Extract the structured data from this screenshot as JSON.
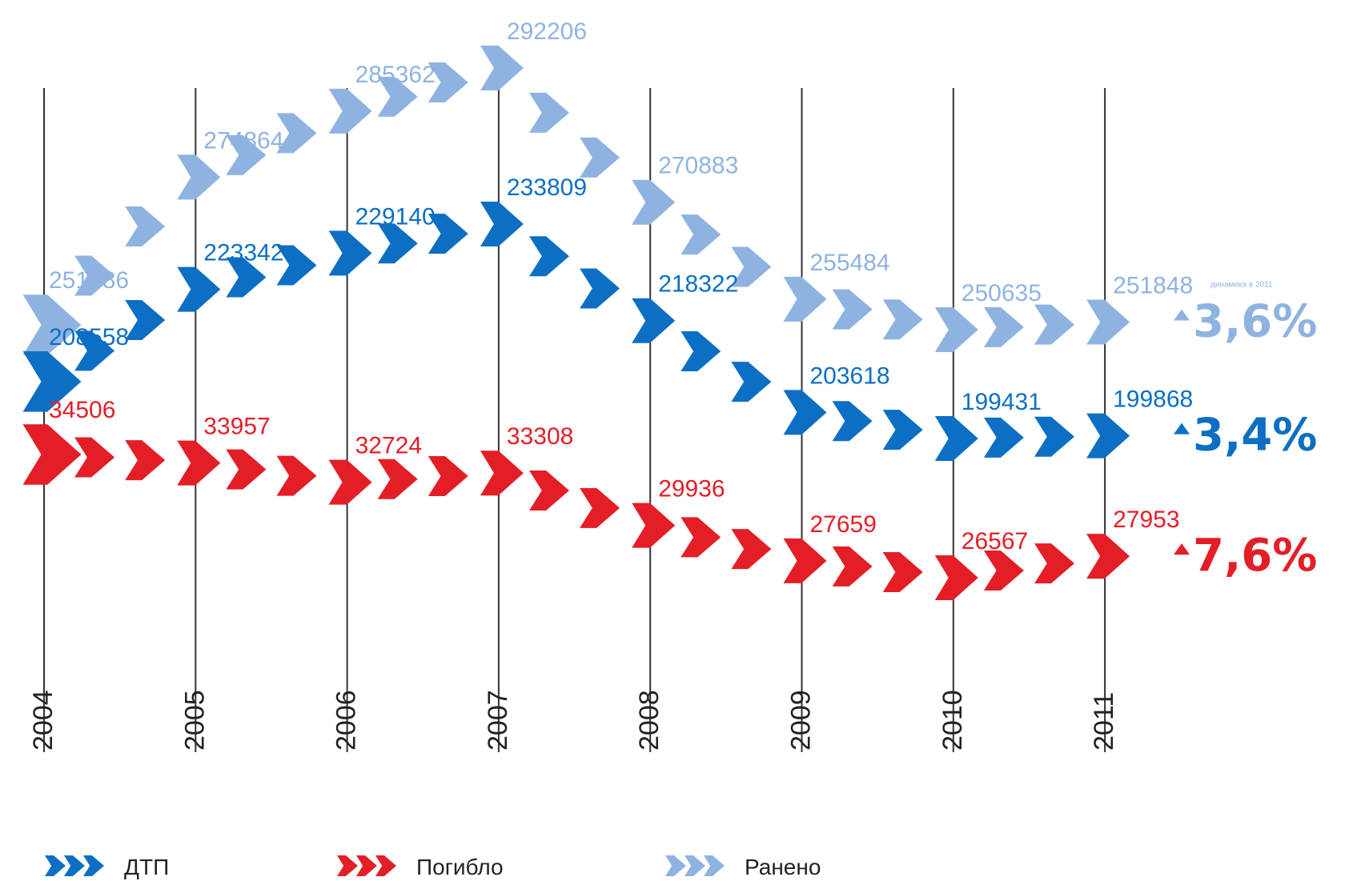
{
  "chart_data": {
    "type": "line",
    "title": "",
    "x": [
      2004,
      2005,
      2006,
      2007,
      2008,
      2009,
      2010,
      2011
    ],
    "xlabels": [
      "2004",
      "2005",
      "2006",
      "2007",
      "2008",
      "2009",
      "2010",
      "2011"
    ],
    "series": [
      {
        "name": "Ранено",
        "color": "#8fb3e1",
        "values": [
          251386,
          274864,
          285362,
          292206,
          270883,
          255484,
          250635,
          251848
        ],
        "labels": [
          "251386",
          "274864",
          "285362",
          "292206",
          "270883",
          "255484",
          "250635",
          "251848"
        ],
        "change_2011": "3,6%"
      },
      {
        "name": "ДТП",
        "color": "#0d6fc4",
        "values": [
          208558,
          223342,
          229140,
          233809,
          218322,
          203618,
          199431,
          199868
        ],
        "labels": [
          "208558",
          "223342",
          "229140",
          "233809",
          "218322",
          "203618",
          "199431",
          "199868"
        ],
        "change_2011": "3,4%"
      },
      {
        "name": "Погибло",
        "color": "#e41e26",
        "values": [
          34506,
          33957,
          32724,
          33308,
          29936,
          27659,
          26567,
          27953
        ],
        "labels": [
          "34506",
          "33957",
          "32724",
          "33308",
          "29936",
          "27659",
          "26567",
          "27953"
        ],
        "change_2011": "7,6%"
      }
    ],
    "change_note": "динамика в 2011",
    "legend": [
      "ДТП",
      "Погибло",
      "Ранено"
    ],
    "legend_position": "bottom-left",
    "grid": false
  }
}
